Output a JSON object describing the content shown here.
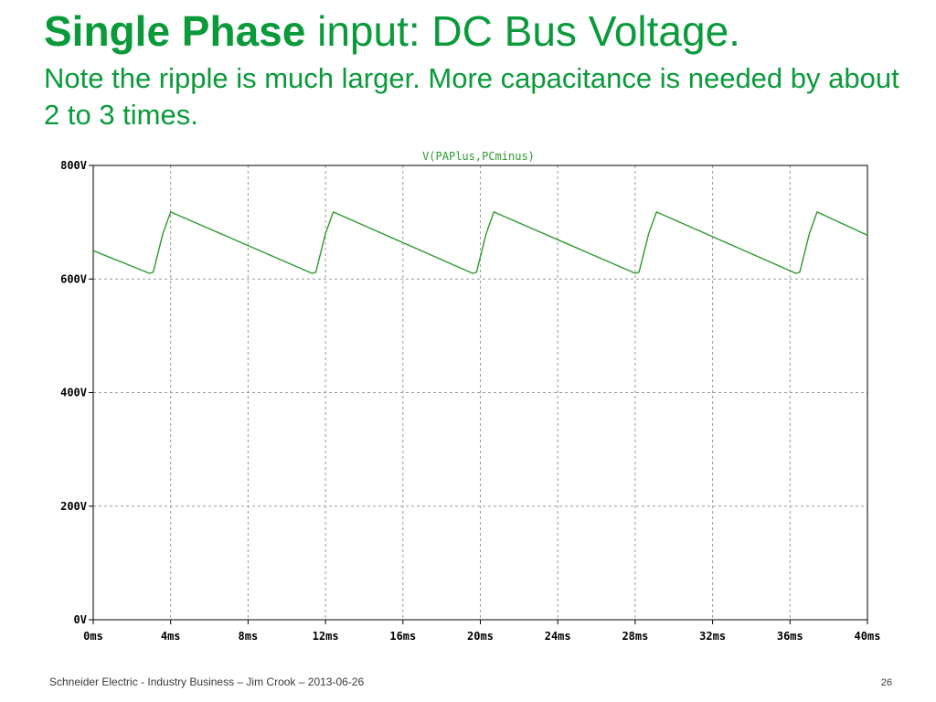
{
  "slide": {
    "title_bold": "Single Phase",
    "title_rest": " input: DC Bus Voltage.",
    "subtitle": "Note the ripple is much larger. More capacitance is needed by about  2 to 3 times.",
    "footer": "Schneider Electric - Industry Business – Jim Crook – 2013-06-26",
    "page_number": "26"
  },
  "chart_data": {
    "type": "line",
    "title": "V(PAPlus,PCminus)",
    "xlabel": "",
    "ylabel": "",
    "xlim": [
      0,
      40
    ],
    "ylim": [
      0,
      800
    ],
    "x_ticks": [
      0,
      4,
      8,
      12,
      16,
      20,
      24,
      28,
      32,
      36,
      40
    ],
    "x_tick_labels": [
      "0ms",
      "4ms",
      "8ms",
      "12ms",
      "16ms",
      "20ms",
      "24ms",
      "28ms",
      "32ms",
      "36ms",
      "40ms"
    ],
    "y_ticks": [
      0,
      200,
      400,
      600,
      800
    ],
    "y_tick_labels": [
      "0V",
      "200V",
      "400V",
      "600V",
      "800V"
    ],
    "grid": true,
    "legend": "none",
    "colors": {
      "series": "#2e9a2e",
      "axis": "#000000",
      "grid": "#9a9a9a",
      "title": "#2e9a2e"
    },
    "series": [
      {
        "name": "V(PAPlus,PCminus)",
        "x": [
          0,
          2.9,
          3.1,
          3.6,
          4.0,
          11.3,
          11.5,
          12.0,
          12.4,
          19.6,
          19.8,
          20.3,
          20.7,
          28.0,
          28.2,
          28.7,
          29.1,
          36.3,
          36.5,
          37.0,
          37.4,
          40.0
        ],
        "y": [
          650,
          610,
          612,
          680,
          718,
          610,
          612,
          680,
          718,
          610,
          612,
          680,
          718,
          610,
          612,
          680,
          718,
          610,
          612,
          680,
          718,
          677
        ]
      }
    ]
  }
}
